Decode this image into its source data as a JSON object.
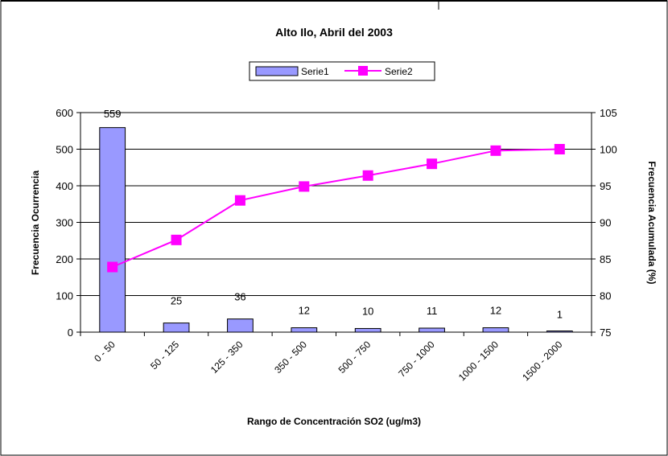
{
  "chart_data": {
    "type": "bar",
    "title": "Alto Ilo, Abril del 2003",
    "xlabel": "Rango de Concentración SO2 (ug/m3)",
    "ylabel": "Frecuencia Ocurrencia",
    "y2label": "Frecuencia Acumulada (%)",
    "categories": [
      "0 - 50",
      "50 - 125",
      "125 - 350",
      "350 - 500",
      "500 - 750",
      "750 - 1000",
      "1000 - 1500",
      "1500 - 2000"
    ],
    "ylim": [
      0,
      600
    ],
    "yticks": [
      0,
      100,
      200,
      300,
      400,
      500,
      600
    ],
    "y2lim": [
      75,
      105
    ],
    "y2ticks": [
      75,
      80,
      85,
      90,
      95,
      100,
      105
    ],
    "grid": true,
    "legend_position": "top",
    "series": [
      {
        "name": "Serie1",
        "type": "bar",
        "axis": "left",
        "color": "#9999ff",
        "values": [
          559,
          25,
          36,
          12,
          10,
          11,
          12,
          1
        ],
        "labels": [
          "559",
          "25",
          "36",
          "12",
          "10",
          "11",
          "12",
          "1"
        ]
      },
      {
        "name": "Serie2",
        "type": "line",
        "axis": "right",
        "color": "#ff00ff",
        "values": [
          83.9,
          87.6,
          93.0,
          94.9,
          96.4,
          98.0,
          99.8,
          100.0
        ]
      }
    ]
  }
}
